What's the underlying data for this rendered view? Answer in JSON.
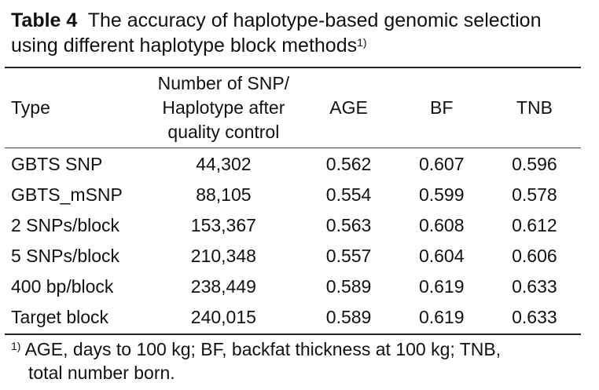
{
  "caption": {
    "label": "Table 4",
    "text": "The accuracy of haplotype-based genomic selection using different haplotype block methods",
    "note_marker": "1)"
  },
  "table": {
    "headers": {
      "type": "Type",
      "number_line1": "Number of SNP/",
      "number_line2": "Haplotype after",
      "number_line3": "quality control",
      "age": "AGE",
      "bf": "BF",
      "tnb": "TNB"
    },
    "rows": [
      {
        "type": "GBTS SNP",
        "number": "44,302",
        "age": "0.562",
        "bf": "0.607",
        "tnb": "0.596"
      },
      {
        "type": "GBTS_mSNP",
        "number": "88,105",
        "age": "0.554",
        "bf": "0.599",
        "tnb": "0.578"
      },
      {
        "type": "2 SNPs/block",
        "number": "153,367",
        "age": "0.563",
        "bf": "0.608",
        "tnb": "0.612"
      },
      {
        "type": "5 SNPs/block",
        "number": "210,348",
        "age": "0.557",
        "bf": "0.604",
        "tnb": "0.606"
      },
      {
        "type": "400 bp/block",
        "number": "238,449",
        "age": "0.589",
        "bf": "0.619",
        "tnb": "0.633"
      },
      {
        "type": "Target block",
        "number": "240,015",
        "age": "0.589",
        "bf": "0.619",
        "tnb": "0.633"
      }
    ]
  },
  "footnote": {
    "marker": "1)",
    "line1": "AGE, days to 100 kg; BF, backfat thickness at 100 kg; TNB,",
    "line2": "total number born."
  }
}
